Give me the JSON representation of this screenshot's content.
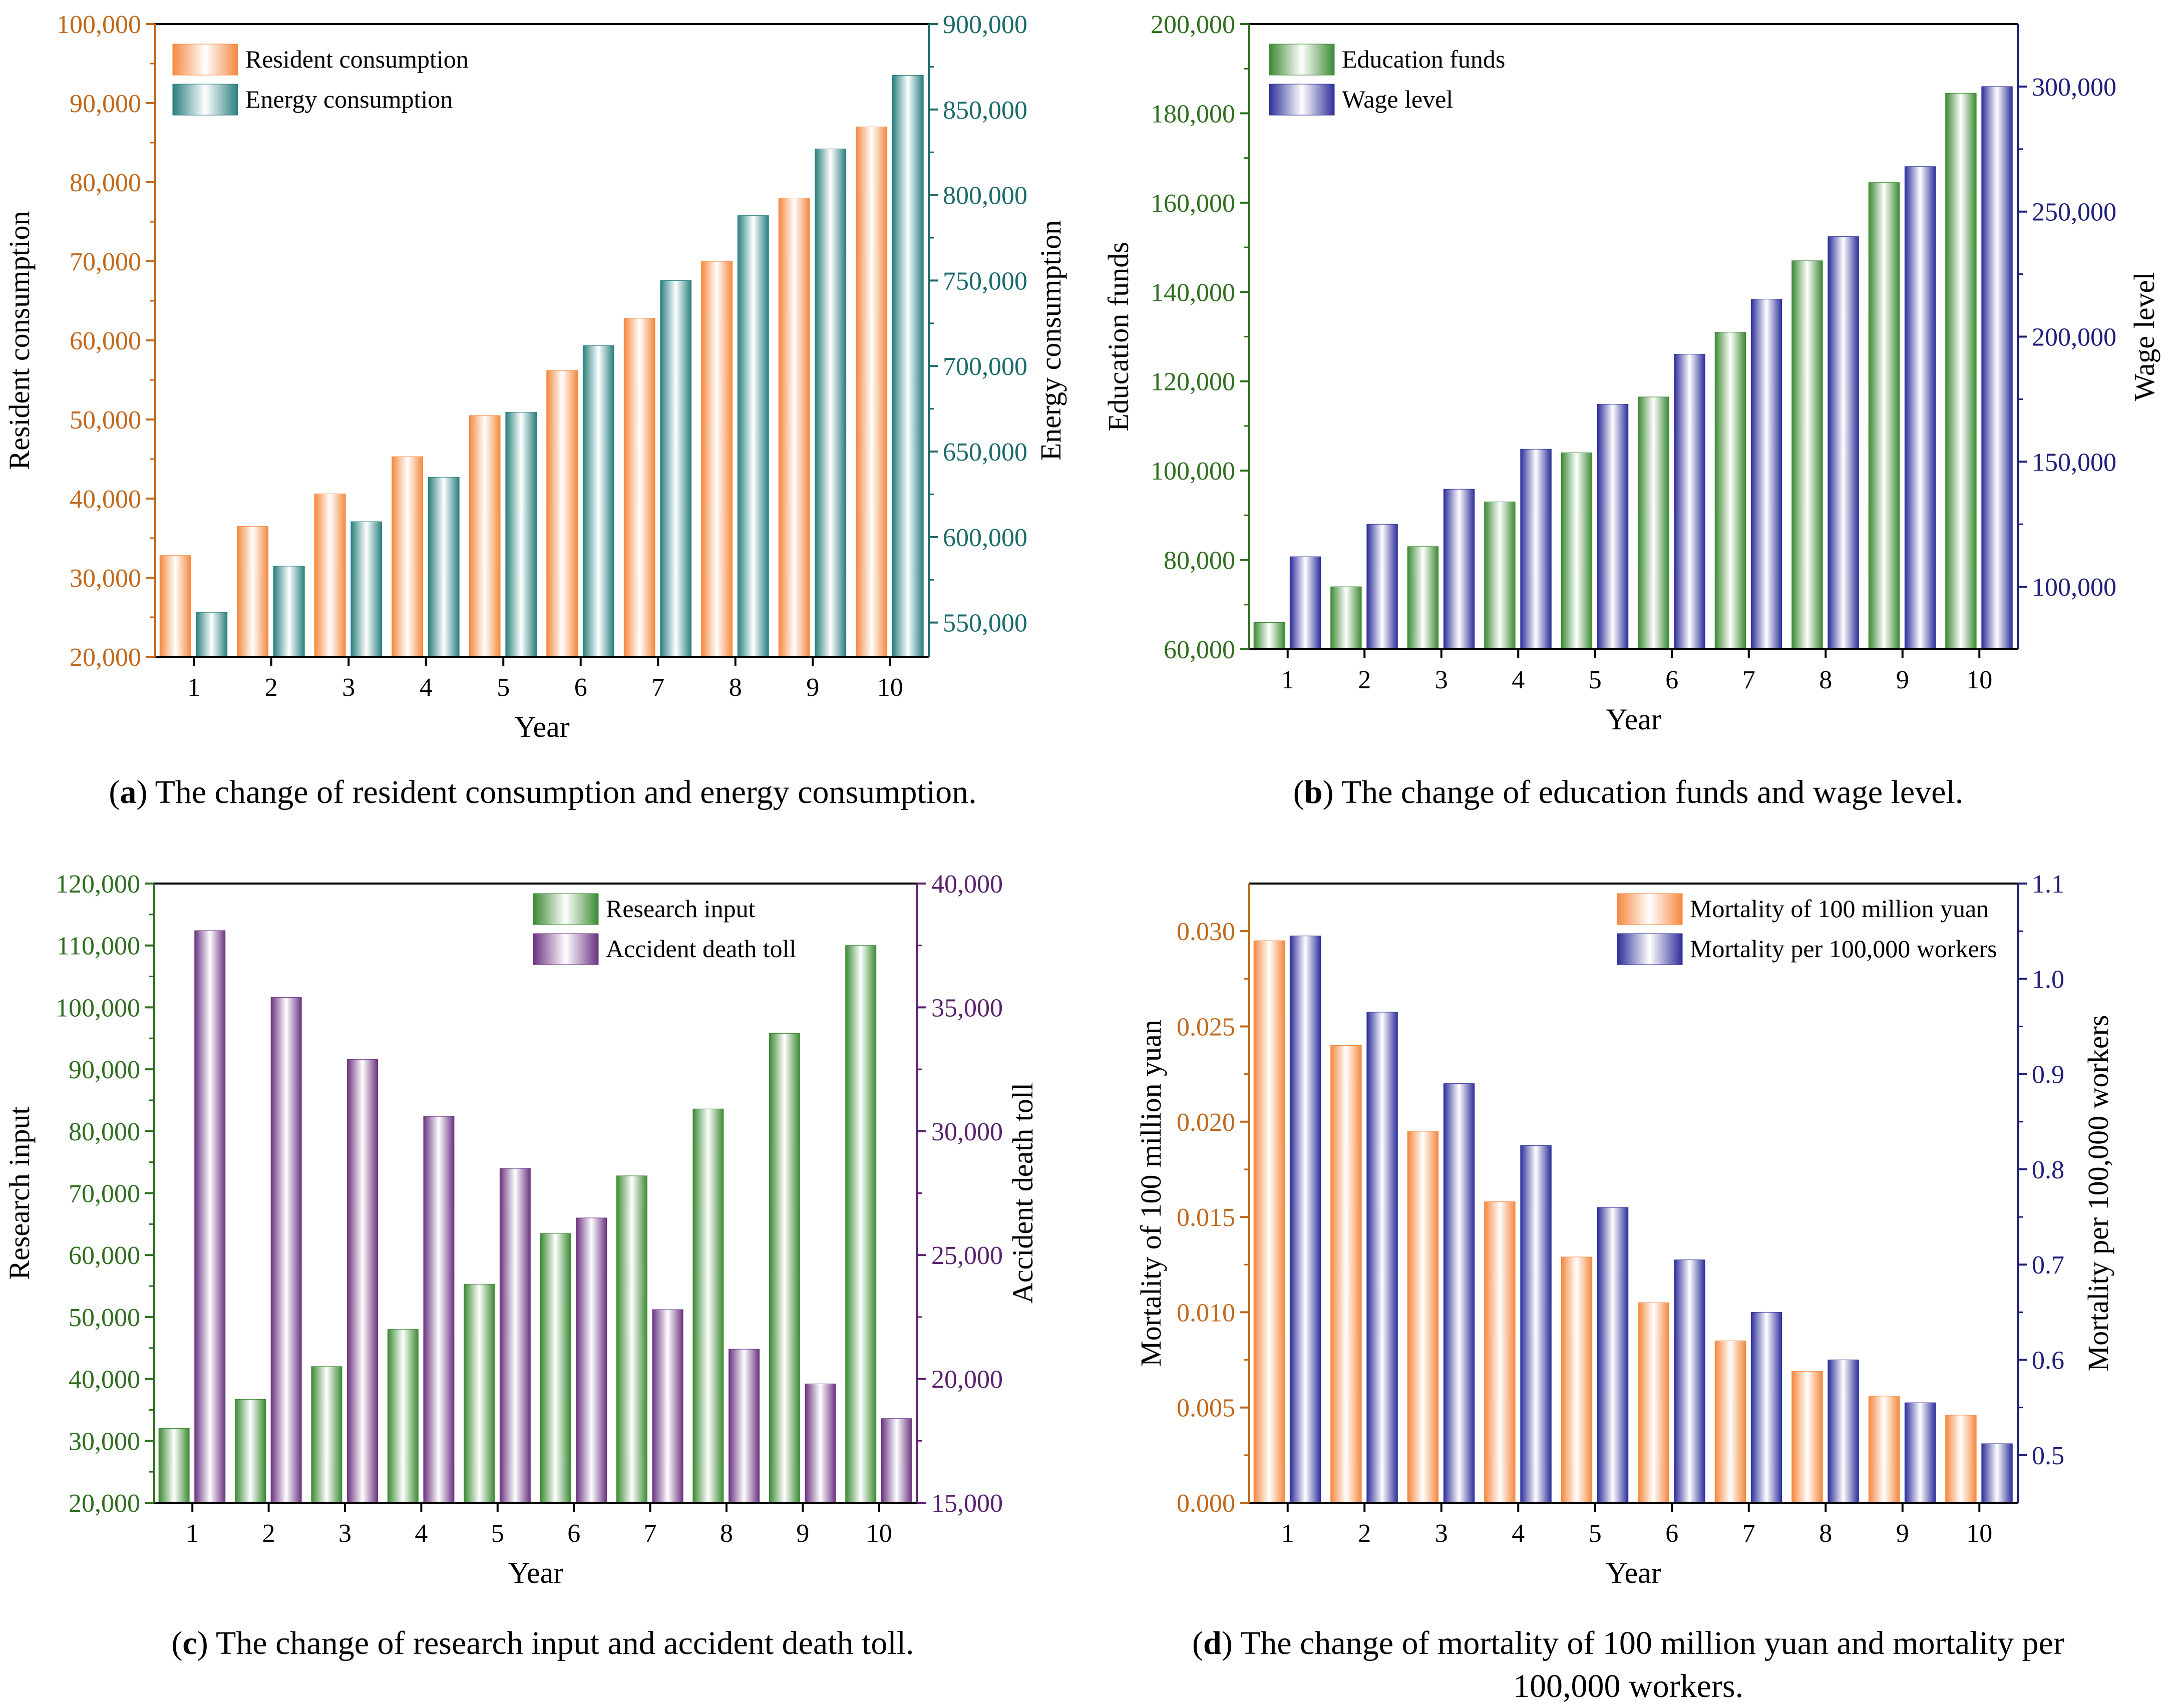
{
  "chart_data": [
    {
      "type": "bar",
      "panel": "a",
      "caption_tag": "a",
      "caption": "The change of resident consumption and energy consumption.",
      "xlabel": "Year",
      "categories": [
        "1",
        "2",
        "3",
        "4",
        "5",
        "6",
        "7",
        "8",
        "9",
        "10"
      ],
      "left_axis": {
        "label": "Resident consumption",
        "color": "#c0681a",
        "min": 20000,
        "max": 100000,
        "ticks": [
          20000,
          30000,
          40000,
          50000,
          60000,
          70000,
          80000,
          90000,
          100000
        ],
        "tick_labels": [
          "20,000",
          "30,000",
          "40,000",
          "50,000",
          "60,000",
          "70,000",
          "80,000",
          "90,000",
          "100,000"
        ]
      },
      "right_axis": {
        "label": "Energy consumption",
        "color": "#1d6a6a",
        "min": 530000,
        "max": 900000,
        "ticks": [
          550000,
          600000,
          650000,
          700000,
          750000,
          800000,
          850000,
          900000
        ],
        "tick_labels": [
          "550,000",
          "600,000",
          "650,000",
          "700,000",
          "750,000",
          "800,000",
          "850,000",
          "900,000"
        ]
      },
      "series": [
        {
          "name": "Resident consumption",
          "axis": "left",
          "color": "#f5883e",
          "values": [
            32800,
            36500,
            40600,
            45300,
            50500,
            56200,
            62800,
            70000,
            78000,
            87000
          ]
        },
        {
          "name": "Energy consumption",
          "axis": "right",
          "color": "#2a7f7f",
          "values": [
            556000,
            583000,
            609000,
            635000,
            673000,
            712000,
            750000,
            788000,
            827000,
            870000
          ]
        }
      ],
      "legend_position": "top-left"
    },
    {
      "type": "bar",
      "panel": "b",
      "caption_tag": "b",
      "caption": "The change of education funds and wage level.",
      "xlabel": "Year",
      "categories": [
        "1",
        "2",
        "3",
        "4",
        "5",
        "6",
        "7",
        "8",
        "9",
        "10"
      ],
      "left_axis": {
        "label": "Education funds",
        "color": "#2e6e1e",
        "min": 60000,
        "max": 200000,
        "ticks": [
          60000,
          80000,
          100000,
          120000,
          140000,
          160000,
          180000,
          200000
        ],
        "tick_labels": [
          "60,000",
          "80,000",
          "100,000",
          "120,000",
          "140,000",
          "160,000",
          "180,000",
          "200,000"
        ]
      },
      "right_axis": {
        "label": "Wage level",
        "color": "#1f1f7a",
        "min": 75000,
        "max": 325000,
        "ticks": [
          100000,
          150000,
          200000,
          250000,
          300000
        ],
        "tick_labels": [
          "100,000",
          "150,000",
          "200,000",
          "250,000",
          "300,000"
        ]
      },
      "series": [
        {
          "name": "Education funds",
          "axis": "left",
          "color": "#3c8a34",
          "values": [
            66000,
            74000,
            83000,
            93000,
            104000,
            116500,
            131000,
            147000,
            164500,
            184500
          ]
        },
        {
          "name": "Wage level",
          "axis": "right",
          "color": "#2e2e9a",
          "values": [
            112000,
            125000,
            139000,
            155000,
            173000,
            193000,
            215000,
            240000,
            268000,
            300000
          ]
        }
      ],
      "legend_position": "top-left"
    },
    {
      "type": "bar",
      "panel": "c",
      "caption_tag": "c",
      "caption": "The change of research input and accident death toll.",
      "xlabel": "Year",
      "categories": [
        "1",
        "2",
        "3",
        "4",
        "5",
        "6",
        "7",
        "8",
        "9",
        "10"
      ],
      "left_axis": {
        "label": "Research input",
        "color": "#2e6e1e",
        "min": 20000,
        "max": 120000,
        "ticks": [
          20000,
          30000,
          40000,
          50000,
          60000,
          70000,
          80000,
          90000,
          100000,
          110000,
          120000
        ],
        "tick_labels": [
          "20,000",
          "30,000",
          "40,000",
          "50,000",
          "60,000",
          "70,000",
          "80,000",
          "90,000",
          "100,000",
          "110,000",
          "120,000"
        ]
      },
      "right_axis": {
        "label": "Accident death toll",
        "color": "#5a1f6e",
        "min": 15000,
        "max": 40000,
        "ticks": [
          15000,
          20000,
          25000,
          30000,
          35000,
          40000
        ],
        "tick_labels": [
          "15,000",
          "20,000",
          "25,000",
          "30,000",
          "35,000",
          "40,000"
        ]
      },
      "series": [
        {
          "name": "Research input",
          "axis": "left",
          "color": "#3c8a34",
          "values": [
            32000,
            36700,
            42000,
            48000,
            55300,
            63500,
            72800,
            83600,
            95800,
            110000
          ]
        },
        {
          "name": "Accident death toll",
          "axis": "right",
          "color": "#6b3380",
          "values": [
            38100,
            35400,
            32900,
            30600,
            28500,
            26500,
            22800,
            21200,
            19800,
            18400
          ]
        }
      ],
      "legend_position": "top-right"
    },
    {
      "type": "bar",
      "panel": "d",
      "caption_tag": "d",
      "caption": "The change of mortality of 100 million yuan and mortality per 100,000 workers.",
      "caption_line1": "The change of mortality of 100 million yuan and mortality per",
      "caption_line2": "100,000 workers.",
      "xlabel": "Year",
      "categories": [
        "1",
        "2",
        "3",
        "4",
        "5",
        "6",
        "7",
        "8",
        "9",
        "10"
      ],
      "left_axis": {
        "label": "Mortality of 100 million yuan",
        "color": "#c0681a",
        "min": 0,
        "max": 0.0325,
        "ticks": [
          0,
          0.005,
          0.01,
          0.015,
          0.02,
          0.025,
          0.03
        ],
        "tick_labels": [
          "0.000",
          "0.005",
          "0.010",
          "0.015",
          "0.020",
          "0.025",
          "0.030"
        ]
      },
      "right_axis": {
        "label": "Mortality per 100,000 workers",
        "color": "#1f1f7a",
        "min": 0.45,
        "max": 1.1,
        "ticks": [
          0.5,
          0.6,
          0.7,
          0.8,
          0.9,
          1.0,
          1.1
        ],
        "tick_labels": [
          "0.5",
          "0.6",
          "0.7",
          "0.8",
          "0.9",
          "1.0",
          "1.1"
        ]
      },
      "series": [
        {
          "name": "Mortality of 100 million yuan",
          "axis": "left",
          "color": "#f5883e",
          "values": [
            0.0295,
            0.024,
            0.0195,
            0.0158,
            0.0129,
            0.0105,
            0.0085,
            0.0069,
            0.0056,
            0.0046
          ]
        },
        {
          "name": "Mortality per 100,000 workers",
          "axis": "right",
          "color": "#2e2e9a",
          "values": [
            1.045,
            0.965,
            0.89,
            0.825,
            0.76,
            0.705,
            0.65,
            0.6,
            0.555,
            0.512
          ]
        }
      ],
      "legend_position": "top-right"
    }
  ]
}
